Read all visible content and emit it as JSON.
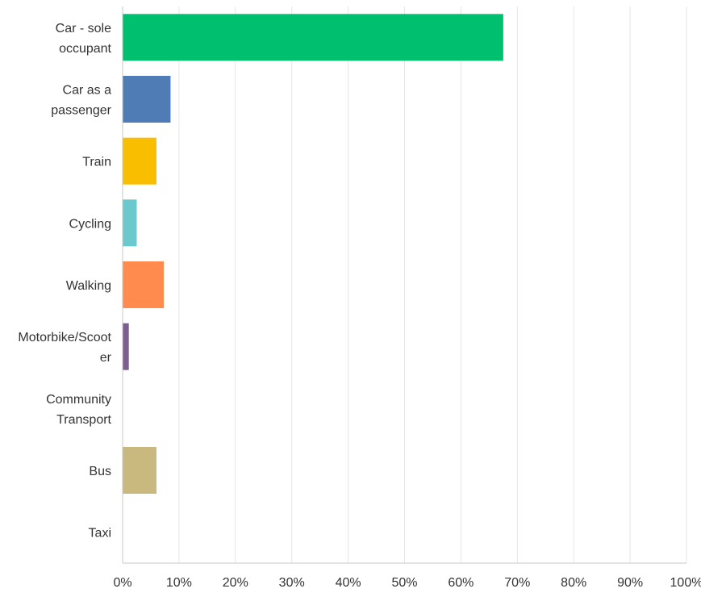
{
  "chart_data": {
    "type": "bar",
    "orientation": "horizontal",
    "categories": [
      [
        "Car - sole",
        "occupant"
      ],
      [
        "Car as a",
        "passenger"
      ],
      [
        "Train"
      ],
      [
        "Cycling"
      ],
      [
        "Walking"
      ],
      [
        "Motorbike/Scoot",
        "er"
      ],
      [
        "Community",
        "Transport"
      ],
      [
        "Bus"
      ],
      [
        "Taxi"
      ]
    ],
    "values": [
      67.5,
      8.5,
      6.0,
      2.5,
      7.3,
      1.1,
      0,
      6.0,
      0
    ],
    "colors": [
      "#00bf6f",
      "#507cb6",
      "#f9be00",
      "#6bc8cd",
      "#ff8b4f",
      "#7d5e90",
      "#d25f90",
      "#c9b97f",
      "#9ba4ab"
    ],
    "xlim": [
      0,
      100
    ],
    "xticks": [
      "0%",
      "10%",
      "20%",
      "30%",
      "40%",
      "50%",
      "60%",
      "70%",
      "80%",
      "90%",
      "100%"
    ],
    "grid": true,
    "title": "",
    "xlabel": "",
    "ylabel": ""
  }
}
